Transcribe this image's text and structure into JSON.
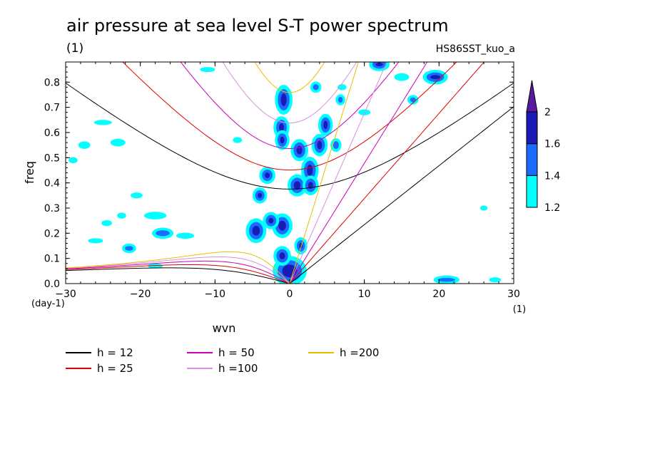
{
  "title": "air pressure at sea level S-T power spectrum",
  "subtitle_left": "(1)",
  "subtitle_right": "HS86SST_kuo_a",
  "chart_data": {
    "type": "heatmap",
    "xlabel": "wvn",
    "ylabel": "freq",
    "x_unit": "(1)",
    "y_unit": "(day-1)",
    "xlim": [
      -30,
      30
    ],
    "ylim": [
      0,
      0.88
    ],
    "x_ticks": [
      -30,
      -20,
      -10,
      0,
      10,
      20,
      30
    ],
    "y_ticks": [
      0.0,
      0.1,
      0.2,
      0.3,
      0.4,
      0.5,
      0.6,
      0.7,
      0.8
    ],
    "colorbar": {
      "levels": [
        1.2,
        1.4,
        1.6,
        2
      ],
      "colors": [
        "#00ffff",
        "#1a6cff",
        "#1a1ab4",
        "#5a1aa0"
      ]
    },
    "dispersion_curves": [
      {
        "name": "h = 12",
        "h": 12,
        "color": "#000000"
      },
      {
        "name": "h = 25",
        "h": 25,
        "color": "#e00000"
      },
      {
        "name": "h = 50",
        "h": 50,
        "color": "#cc00bb"
      },
      {
        "name": "h =100",
        "h": 100,
        "color": "#d890e0"
      },
      {
        "name": "h =200",
        "h": 200,
        "color": "#e8c000"
      }
    ],
    "blobs": [
      {
        "x": -0.8,
        "y": 0.73,
        "rx": 0.7,
        "ry": 0.045,
        "level": 2
      },
      {
        "x": -1.1,
        "y": 0.62,
        "rx": 0.6,
        "ry": 0.03,
        "level": 2
      },
      {
        "x": -1.0,
        "y": 0.57,
        "rx": 0.5,
        "ry": 0.025,
        "level": 2
      },
      {
        "x": 1.3,
        "y": 0.53,
        "rx": 0.7,
        "ry": 0.03,
        "level": 2
      },
      {
        "x": 2.7,
        "y": 0.45,
        "rx": 0.7,
        "ry": 0.04,
        "level": 2
      },
      {
        "x": 4.0,
        "y": 0.55,
        "rx": 0.6,
        "ry": 0.03,
        "level": 2
      },
      {
        "x": 4.8,
        "y": 0.63,
        "rx": 0.5,
        "ry": 0.03,
        "level": 2
      },
      {
        "x": -3.0,
        "y": 0.43,
        "rx": 0.6,
        "ry": 0.02,
        "level": 2
      },
      {
        "x": 1.0,
        "y": 0.39,
        "rx": 0.8,
        "ry": 0.03,
        "level": 2
      },
      {
        "x": 2.8,
        "y": 0.39,
        "rx": 0.6,
        "ry": 0.025,
        "level": 2
      },
      {
        "x": -4.0,
        "y": 0.35,
        "rx": 0.5,
        "ry": 0.018,
        "level": 2
      },
      {
        "x": -4.5,
        "y": 0.21,
        "rx": 0.9,
        "ry": 0.035,
        "level": 2
      },
      {
        "x": -1.0,
        "y": 0.23,
        "rx": 0.9,
        "ry": 0.035,
        "level": 2
      },
      {
        "x": -2.5,
        "y": 0.25,
        "rx": 0.6,
        "ry": 0.02,
        "level": 2
      },
      {
        "x": 1.5,
        "y": 0.15,
        "rx": 0.4,
        "ry": 0.02,
        "level": 2
      },
      {
        "x": 0.0,
        "y": 0.05,
        "rx": 1.8,
        "ry": 0.045,
        "level": 2
      },
      {
        "x": -1.0,
        "y": 0.11,
        "rx": 0.7,
        "ry": 0.025,
        "level": 2
      },
      {
        "x": 19.5,
        "y": 0.82,
        "rx": 1.2,
        "ry": 0.015,
        "level": 2
      },
      {
        "x": 12.0,
        "y": 0.87,
        "rx": 0.9,
        "ry": 0.012,
        "level": 2
      },
      {
        "x": 3.5,
        "y": 0.78,
        "rx": 0.5,
        "ry": 0.015,
        "level": 1
      },
      {
        "x": 6.2,
        "y": 0.55,
        "rx": 0.5,
        "ry": 0.02,
        "level": 1
      },
      {
        "x": 6.8,
        "y": 0.73,
        "rx": 0.4,
        "ry": 0.015,
        "level": 1
      },
      {
        "x": 16.5,
        "y": 0.73,
        "rx": 0.5,
        "ry": 0.012,
        "level": 1
      },
      {
        "x": -21.5,
        "y": 0.14,
        "rx": 0.7,
        "ry": 0.012,
        "level": 1
      },
      {
        "x": -17.0,
        "y": 0.2,
        "rx": 1.2,
        "ry": 0.015,
        "level": 1
      },
      {
        "x": 21.0,
        "y": 0.015,
        "rx": 1.5,
        "ry": 0.01,
        "level": 1
      },
      {
        "x": -25.0,
        "y": 0.64,
        "rx": 1.2,
        "ry": 0.01,
        "level": 0
      },
      {
        "x": -27.5,
        "y": 0.55,
        "rx": 0.8,
        "ry": 0.015,
        "level": 0
      },
      {
        "x": -23.0,
        "y": 0.56,
        "rx": 1.0,
        "ry": 0.015,
        "level": 0
      },
      {
        "x": -29.0,
        "y": 0.49,
        "rx": 0.6,
        "ry": 0.012,
        "level": 0
      },
      {
        "x": -24.5,
        "y": 0.24,
        "rx": 0.7,
        "ry": 0.012,
        "level": 0
      },
      {
        "x": -20.5,
        "y": 0.35,
        "rx": 0.8,
        "ry": 0.012,
        "level": 0
      },
      {
        "x": -18.0,
        "y": 0.27,
        "rx": 1.5,
        "ry": 0.015,
        "level": 0
      },
      {
        "x": -14.0,
        "y": 0.19,
        "rx": 1.2,
        "ry": 0.012,
        "level": 0
      },
      {
        "x": -18.0,
        "y": 0.07,
        "rx": 1.0,
        "ry": 0.01,
        "level": 0
      },
      {
        "x": -26.0,
        "y": 0.17,
        "rx": 1.0,
        "ry": 0.01,
        "level": 0
      },
      {
        "x": -22.5,
        "y": 0.27,
        "rx": 0.6,
        "ry": 0.012,
        "level": 0
      },
      {
        "x": -11.0,
        "y": 0.85,
        "rx": 1.0,
        "ry": 0.01,
        "level": 0
      },
      {
        "x": -7.0,
        "y": 0.57,
        "rx": 0.6,
        "ry": 0.012,
        "level": 0
      },
      {
        "x": 10.0,
        "y": 0.68,
        "rx": 0.8,
        "ry": 0.012,
        "level": 0
      },
      {
        "x": 15.0,
        "y": 0.82,
        "rx": 1.0,
        "ry": 0.015,
        "level": 0
      },
      {
        "x": 26.0,
        "y": 0.3,
        "rx": 0.5,
        "ry": 0.01,
        "level": 0
      },
      {
        "x": 27.5,
        "y": 0.015,
        "rx": 0.8,
        "ry": 0.01,
        "level": 0
      },
      {
        "x": 7.0,
        "y": 0.78,
        "rx": 0.6,
        "ry": 0.012,
        "level": 0
      }
    ]
  }
}
